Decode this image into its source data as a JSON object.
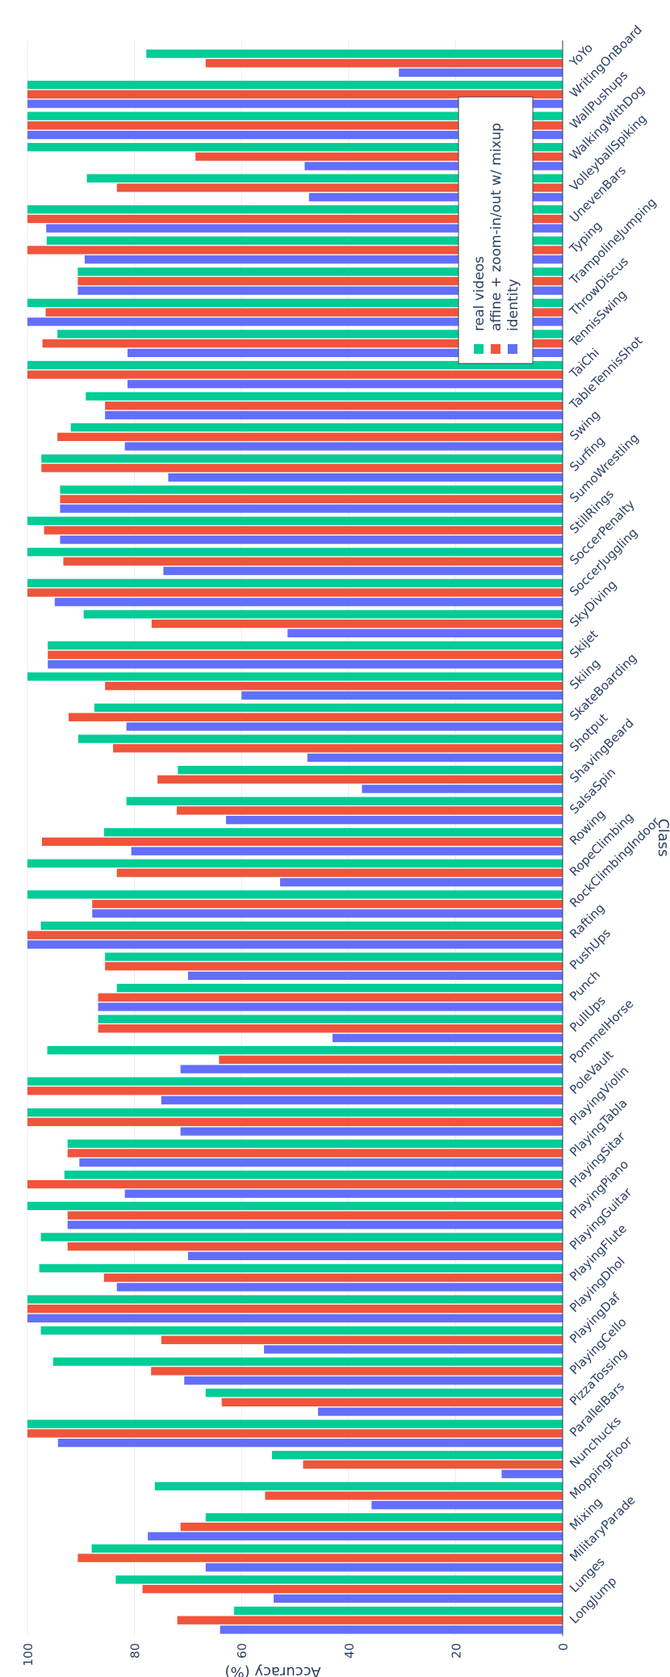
{
  "chart_data": {
    "type": "bar",
    "orientation": "grouped bars, figure rotated 90° clockwise",
    "xlabel": "Class",
    "ylabel": "Accuracy (%)",
    "ylim": [
      0,
      105
    ],
    "yticks": [
      0,
      20,
      40,
      60,
      80,
      100
    ],
    "grid": true,
    "legend_position": "top-right",
    "categories": [
      "LongJump",
      "Lunges",
      "MilitaryParade",
      "Mixing",
      "MoppingFloor",
      "Nunchucks",
      "ParallelBars",
      "PizzaTossing",
      "PlayingCello",
      "PlayingDaf",
      "PlayingDhol",
      "PlayingFlute",
      "PlayingGuitar",
      "PlayingPiano",
      "PlayingSitar",
      "PlayingTabla",
      "PlayingViolin",
      "PoleVault",
      "PommelHorse",
      "PullUps",
      "Punch",
      "PushUps",
      "Rafting",
      "RockClimbingIndoor",
      "RopeClimbing",
      "Rowing",
      "SalsaSpin",
      "ShavingBeard",
      "Shotput",
      "SkateBoarding",
      "Skiing",
      "Skijet",
      "SkyDiving",
      "SoccerJuggling",
      "SoccerPenalty",
      "StillRings",
      "SumoWrestling",
      "Surfing",
      "Swing",
      "TableTennisShot",
      "TaiChi",
      "TennisSwing",
      "ThrowDiscus",
      "TrampolineJumping",
      "Typing",
      "UnevenBars",
      "VolleyballSpiking",
      "WalkingWithDog",
      "WallPushups",
      "WritingOnBoard",
      "YoYo"
    ],
    "series": [
      {
        "name": "identity",
        "color": "#636efa",
        "values": [
          64,
          54,
          66.7,
          77.5,
          35.7,
          11.4,
          94.3,
          45.7,
          70.7,
          55.8,
          100,
          83.3,
          70,
          92.5,
          81.8,
          90.3,
          71.4,
          75,
          71.4,
          43,
          86.8,
          70,
          100,
          87.9,
          52.8,
          80.6,
          62.9,
          37.5,
          47.7,
          81.5,
          60,
          96.2,
          51.4,
          94.9,
          74.6,
          93.9,
          93.9,
          73.7,
          81.8,
          85.5,
          81.3,
          81.3,
          100,
          90.6,
          89.3,
          96.5,
          47.4,
          48.2,
          100,
          100,
          30.6
        ]
      },
      {
        "name": "affine + zoom-in/out w/ mixup",
        "color": "#ef553b",
        "values": [
          72,
          78.5,
          90.6,
          71.4,
          55.6,
          48.5,
          100,
          63.7,
          76.9,
          75,
          100,
          85.7,
          92.5,
          92.5,
          100,
          92.5,
          100,
          100,
          64.2,
          86.8,
          86.8,
          85.5,
          100,
          87.9,
          83.3,
          97.3,
          72.1,
          75.7,
          84,
          92.3,
          85.5,
          96.2,
          76.8,
          100,
          93.3,
          96.9,
          93.9,
          97.4,
          94.4,
          85.5,
          100,
          97.2,
          96.6,
          90.6,
          100,
          100,
          83.3,
          68.6,
          100,
          100,
          66.7
        ]
      },
      {
        "name": "real videos",
        "color": "#00cc96",
        "values": [
          61.4,
          83.5,
          88,
          66.7,
          76.2,
          54.3,
          100,
          66.7,
          95.2,
          97.5,
          100,
          97.8,
          97.5,
          100,
          93.1,
          92.5,
          100,
          100,
          96.3,
          86.8,
          83.3,
          85.5,
          97.5,
          100,
          100,
          85.7,
          81.5,
          71.9,
          90.5,
          87.5,
          100,
          96.2,
          89.5,
          100,
          100,
          100,
          93.9,
          97.4,
          91.9,
          89.1,
          100,
          94.4,
          100,
          90.6,
          96.4,
          100,
          88.9,
          100,
          100,
          100,
          77.8
        ]
      }
    ]
  }
}
